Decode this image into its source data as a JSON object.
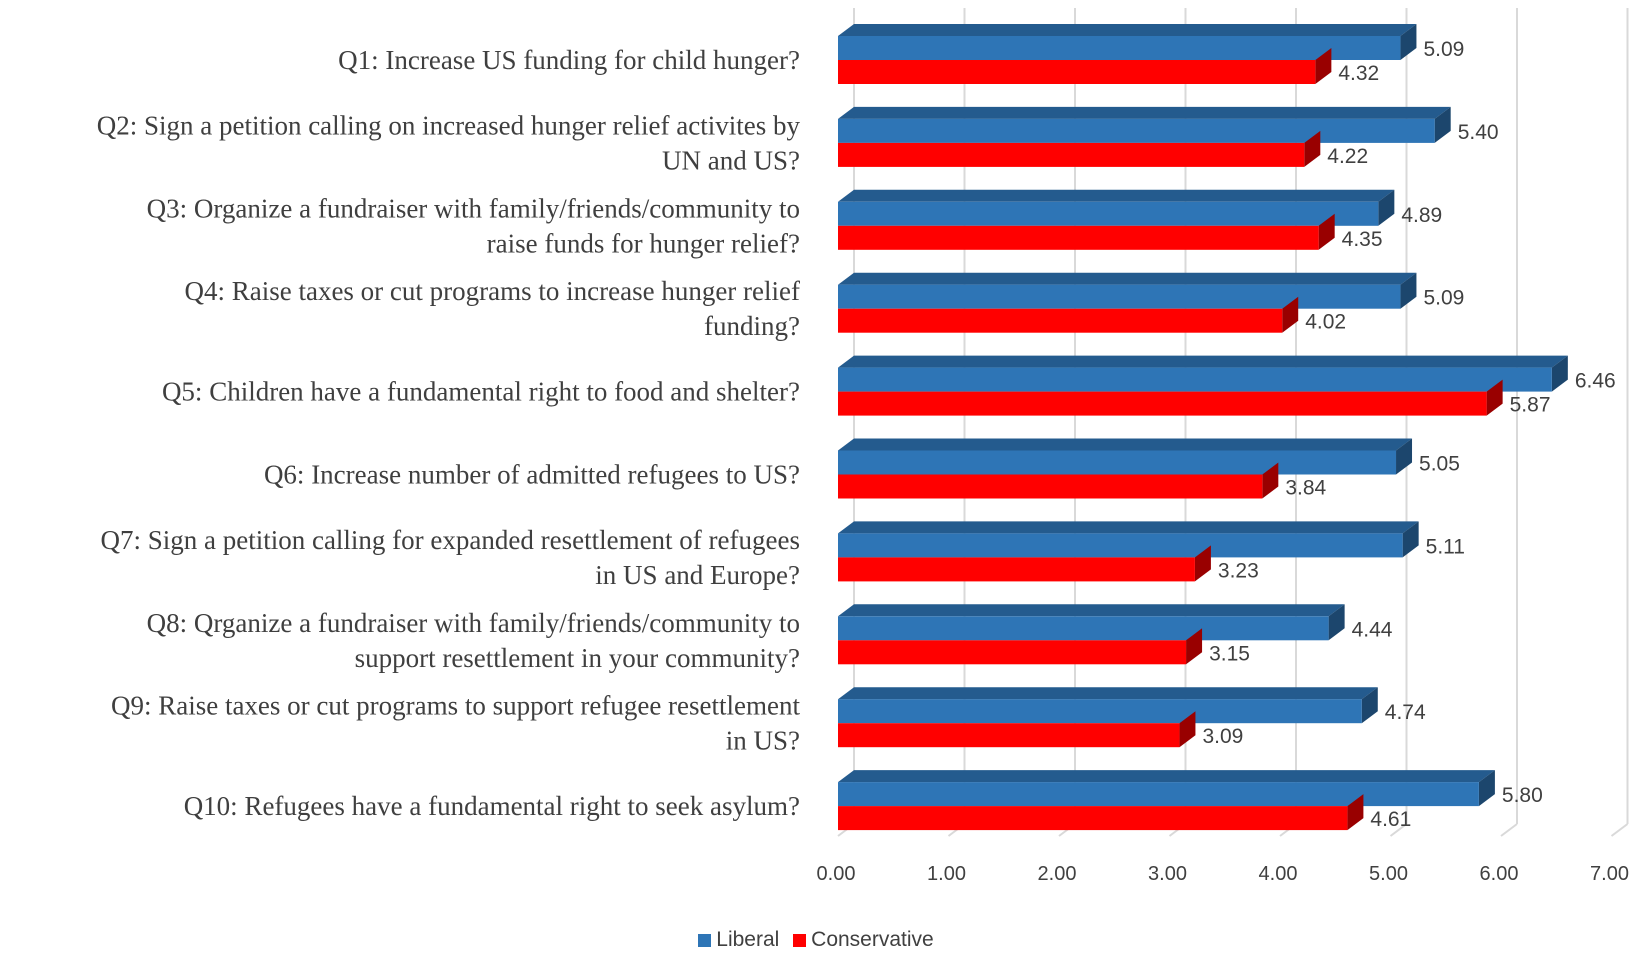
{
  "chart_data": {
    "type": "bar",
    "orientation": "horizontal",
    "categories": [
      "Q1: Increase US funding for child hunger?",
      "Q2: Sign a petition calling on increased hunger relief activites by UN and US?",
      "Q3: Organize a fundraiser with family/friends/community to raise funds for hunger relief?",
      "Q4: Raise taxes or cut programs to increase hunger relief funding?",
      "Q5: Children have a fundamental right to food and shelter?",
      "Q6: Increase number of admitted refugees to US?",
      "Q7: Sign a petition calling for expanded resettlement of refugees in US and Europe?",
      "Q8: Qrganize a fundraiser with family/friends/community to support resettlement in your community?",
      "Q9: Raise taxes or cut programs to support refugee resettlement in US?",
      "Q10: Refugees have a fundamental right to seek asylum?"
    ],
    "category_lines": [
      [
        "Q1: Increase US funding for child hunger?"
      ],
      [
        "Q2: Sign a petition calling on increased hunger relief activites by",
        "UN and US?"
      ],
      [
        "Q3: Organize a fundraiser with family/friends/community to",
        "raise funds for hunger relief?"
      ],
      [
        "Q4: Raise taxes or cut programs to increase hunger relief",
        "funding?"
      ],
      [
        "Q5: Children have a fundamental right to food and shelter?"
      ],
      [
        "Q6: Increase number of admitted refugees to US?"
      ],
      [
        "Q7: Sign a petition calling for expanded resettlement of refugees",
        "in US and Europe?"
      ],
      [
        "Q8: Qrganize a fundraiser with family/friends/community to",
        "support resettlement in your community?"
      ],
      [
        "Q9: Raise taxes or cut programs to support refugee resettlement",
        "in US?"
      ],
      [
        "Q10: Refugees have a fundamental right to seek asylum?"
      ]
    ],
    "series": [
      {
        "name": "Liberal",
        "color": "#2E75B6",
        "values": [
          5.09,
          5.4,
          4.89,
          5.09,
          6.46,
          5.05,
          5.11,
          4.44,
          4.74,
          5.8
        ],
        "labels": [
          "5.09",
          "5.40",
          "4.89",
          "5.09",
          "6.46",
          "5.05",
          "5.11",
          "4.44",
          "4.74",
          "5.80"
        ]
      },
      {
        "name": "Conservative",
        "color": "#FF0000",
        "values": [
          4.32,
          4.22,
          4.35,
          4.02,
          5.87,
          3.84,
          3.23,
          3.15,
          3.09,
          4.61
        ],
        "labels": [
          "4.32",
          "4.22",
          "4.35",
          "4.02",
          "5.87",
          "3.84",
          "3.23",
          "3.15",
          "3.09",
          "4.61"
        ]
      }
    ],
    "xlim": [
      0,
      7
    ],
    "ticks": [
      "0.00",
      "1.00",
      "2.00",
      "3.00",
      "4.00",
      "5.00",
      "6.00",
      "7.00"
    ],
    "grid": true,
    "legend_position": "bottom",
    "style": "3d-bars"
  }
}
